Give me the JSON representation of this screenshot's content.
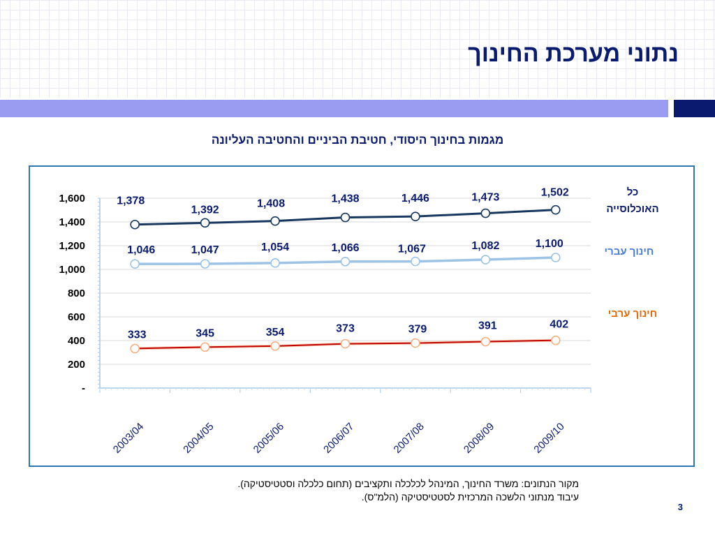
{
  "slide": {
    "title": "נתוני מערכת החינוך",
    "chart_title": "מגמות בחינוך היסודי, חטיבת הביניים והחטיבה העליונה",
    "source_line1": "מקור הנתונים:  משרד החינוך, המינהל לכלכלה ותקציבים (תחום כלכלה  וסטטיסטיקה).",
    "source_line2": "עיבוד מנתוני הלשכה המרכזית לסטטיסטיקה (הלמ\"ס).",
    "page_number": "3"
  },
  "colors": {
    "title": "#0a1a6e",
    "bar": "#9a9cf2",
    "frame": "#2e75b6",
    "series_all": "#17375e",
    "series_hebrew": "#9dc3e6",
    "series_arab": "#c00000",
    "series_arab_marker": "#f4b183",
    "label_hebrew": "#4a7ed8",
    "label_arab": "#e46c0a",
    "label_all": "#0a1a6e"
  },
  "chart_data": {
    "type": "line",
    "categories": [
      "2003/04",
      "2004/05",
      "2005/06",
      "2006/07",
      "2007/08",
      "2008/09",
      "2009/10"
    ],
    "series": [
      {
        "name": "כל האוכלוסייה",
        "values": [
          1378,
          1392,
          1408,
          1438,
          1446,
          1473,
          1502
        ],
        "labels": [
          "1,378",
          "1,392",
          "1,408",
          "1,438",
          "1,446",
          "1,473",
          "1,502"
        ]
      },
      {
        "name": "חינוך עברי",
        "values": [
          1046,
          1047,
          1054,
          1066,
          1067,
          1082,
          1100
        ],
        "labels": [
          "1,046",
          "1,047",
          "1,054",
          "1,066",
          "1,067",
          "1,082",
          "1,100"
        ]
      },
      {
        "name": "חינוך ערבי",
        "values": [
          333,
          345,
          354,
          373,
          379,
          391,
          402
        ],
        "labels": [
          "333",
          "345",
          "354",
          "373",
          "379",
          "391",
          "402"
        ]
      }
    ],
    "ylim": [
      0,
      1600
    ],
    "yticks": [
      0,
      200,
      400,
      600,
      800,
      1000,
      1200,
      1400,
      1600
    ],
    "ytick_labels": [
      "-",
      "200",
      "400",
      "600",
      "800",
      "1,000",
      "1,200",
      "1,400",
      "1,600"
    ],
    "grid": true,
    "legend": "right"
  }
}
